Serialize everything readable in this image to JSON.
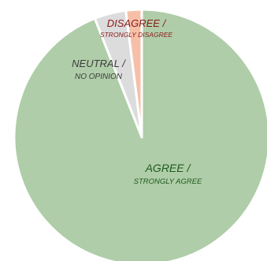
{
  "chart_data": {
    "type": "pie",
    "title": "",
    "slices": [
      {
        "label_main": "AGREE /",
        "label_sub": "STRONGLY AGREE",
        "value": 94,
        "color": "#afcda8",
        "label_color": "#1f5a1f"
      },
      {
        "label_main": "NEUTRAL /",
        "label_sub": "NO OPINION",
        "value": 4,
        "color": "#dcdcdc",
        "label_color": "#3d3d3d"
      },
      {
        "label_main": "DISAGREE /",
        "label_sub": "STRONGLY DISAGREE",
        "value": 2,
        "color": "#f6c0a8",
        "label_color": "#8b1a1a"
      }
    ],
    "legend": "none"
  }
}
